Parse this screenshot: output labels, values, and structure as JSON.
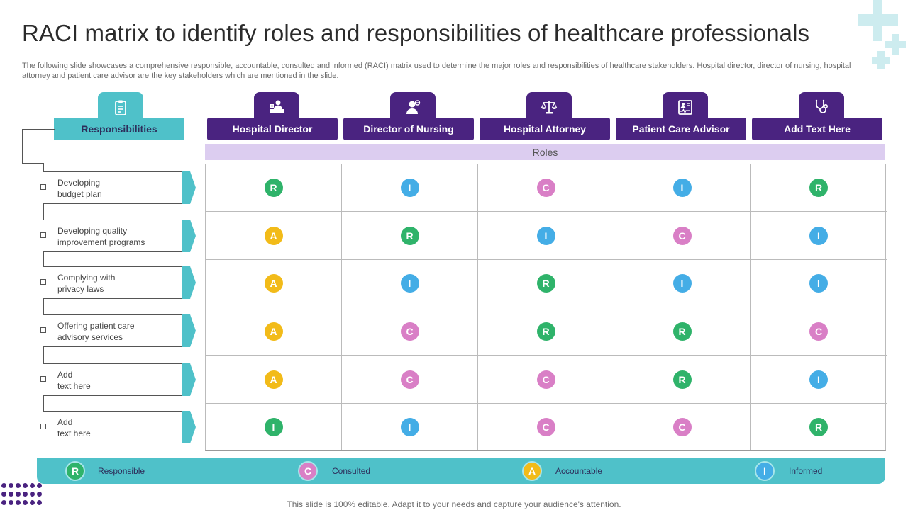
{
  "title": "RACI matrix to identify roles and responsibilities of healthcare professionals",
  "subtitle": "The following slide showcases a comprehensive responsible, accountable, consulted and informed (RACI) matrix used to determine the major roles and responsibilities of healthcare stakeholders. Hospital director, director of nursing, hospital attorney and patient care advisor are the key stakeholders which are mentioned in the slide.",
  "responsibilities_header": "Responsibilities",
  "roles_label": "Roles",
  "roles": [
    {
      "label": "Hospital Director",
      "icon": "doctor-desk-icon"
    },
    {
      "label": "Director of Nursing",
      "icon": "nurse-icon"
    },
    {
      "label": "Hospital Attorney",
      "icon": "scales-icon"
    },
    {
      "label": "Patient Care Advisor",
      "icon": "medical-chart-icon"
    },
    {
      "label": "Add Text Here",
      "icon": "stethoscope-icon"
    }
  ],
  "tasks": [
    {
      "line1": "Developing",
      "line2": "budget plan"
    },
    {
      "line1": "Developing  quality",
      "line2": "improvement  programs"
    },
    {
      "line1": "Complying with",
      "line2": "privacy  laws"
    },
    {
      "line1": "Offering  patient care",
      "line2": "advisory  services"
    },
    {
      "line1": "Add",
      "line2": "text here"
    },
    {
      "line1": "Add",
      "line2": "text here"
    }
  ],
  "matrix": [
    [
      "R",
      "I",
      "C",
      "I",
      "R"
    ],
    [
      "A",
      "R",
      "I",
      "C",
      "I"
    ],
    [
      "A",
      "I",
      "R",
      "I",
      "I"
    ],
    [
      "A",
      "C",
      "R",
      "R",
      "C"
    ],
    [
      "A",
      "C",
      "C",
      "R",
      "I"
    ],
    [
      "I",
      "I",
      "C",
      "C",
      "R"
    ]
  ],
  "legend": [
    {
      "letter": "R",
      "label": "Responsible"
    },
    {
      "letter": "C",
      "label": "Consulted"
    },
    {
      "letter": "A",
      "label": "Accountable"
    },
    {
      "letter": "I",
      "label": "Informed"
    }
  ],
  "colors": {
    "R": "#2fb36a",
    "C": "#d97fc6",
    "A": "#f2bb19",
    "I": "#44ade6",
    "I_green": "#2fb36a",
    "teal": "#4fc1c9",
    "purple": "#4a2380",
    "roles_bar": "#dccdf0"
  },
  "footer": "This slide is 100% editable. Adapt it to your needs and capture your audience's attention."
}
